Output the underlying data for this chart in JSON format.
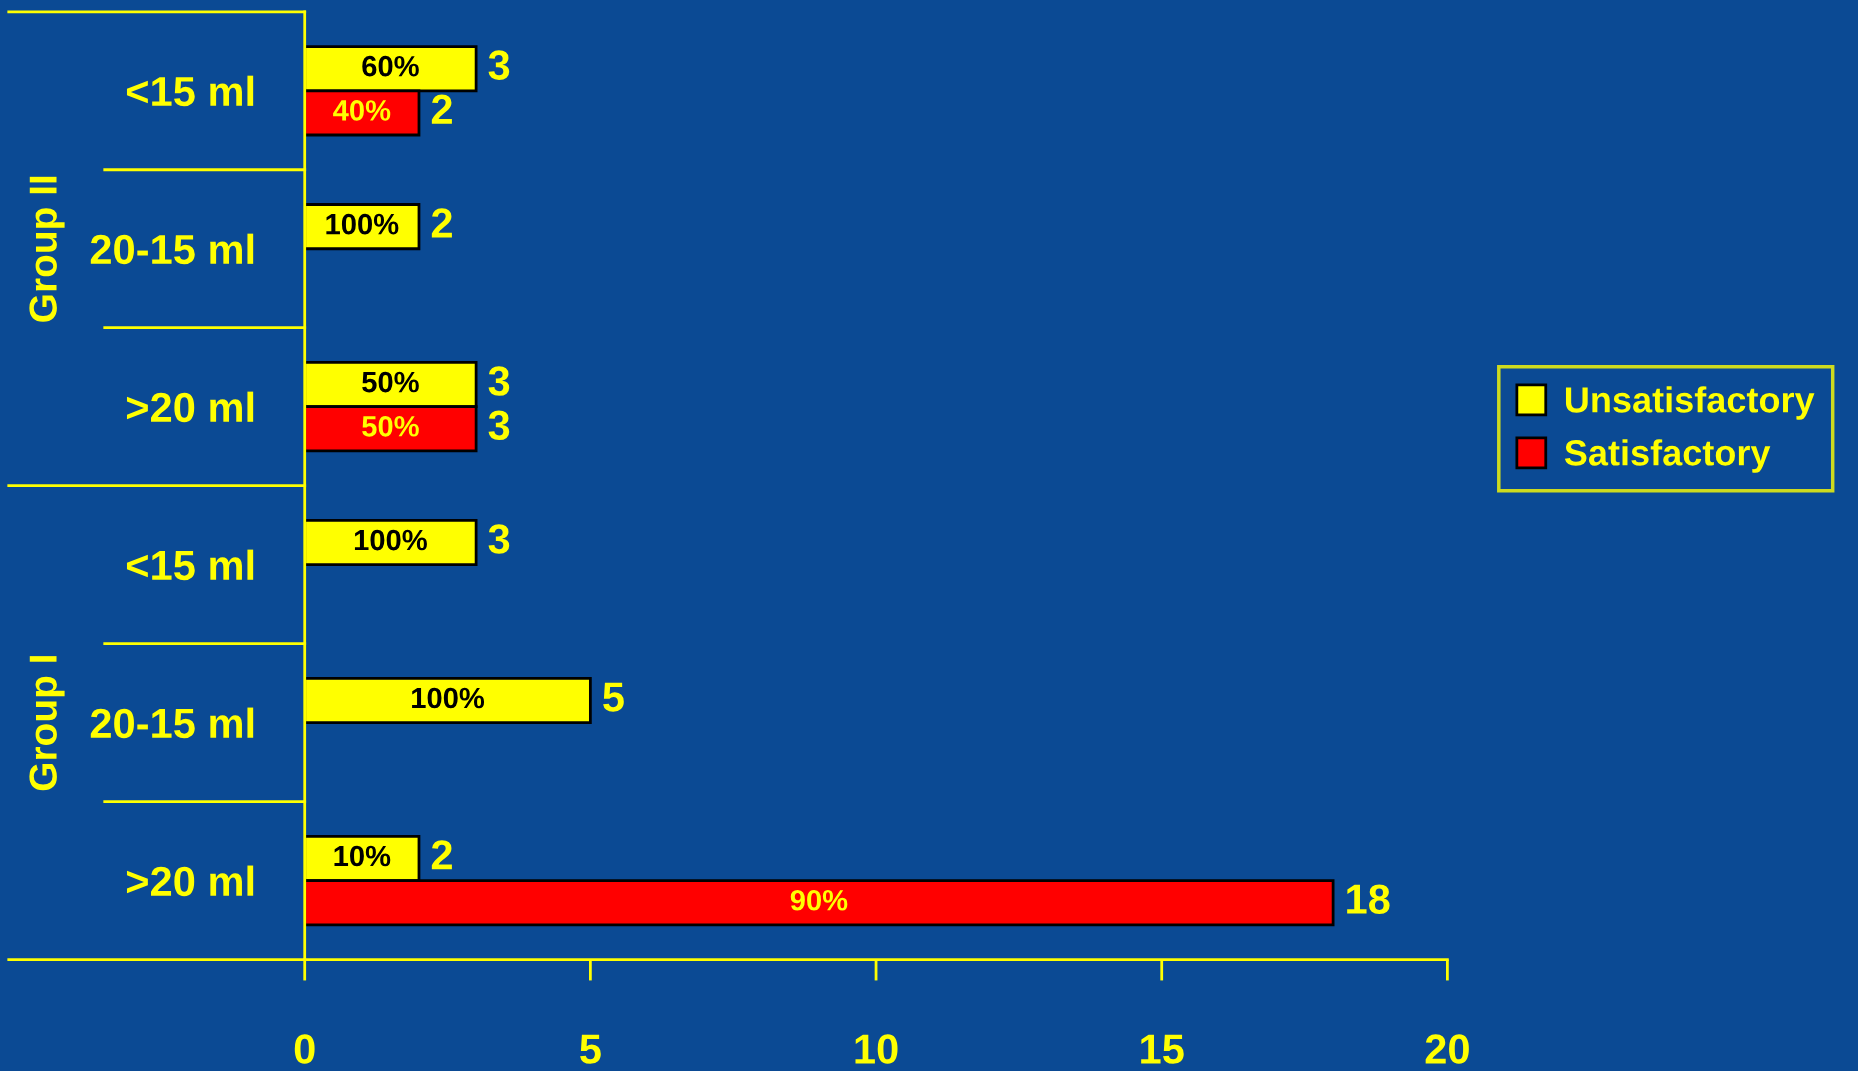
{
  "chart_data": {
    "type": "bar",
    "orientation": "horizontal",
    "categories": [
      "<15 ml",
      "20-15 ml",
      ">20 ml",
      "<15 ml",
      "20-15 ml",
      ">20 ml"
    ],
    "series": [
      {
        "name": "Unsatisfactory",
        "color": "#ffff00",
        "values": [
          3,
          2,
          3,
          3,
          5,
          2
        ]
      },
      {
        "name": "Satisfactory",
        "color": "#ff0000",
        "values": [
          2,
          null,
          3,
          null,
          null,
          18
        ]
      }
    ],
    "xlim": [
      0,
      20
    ],
    "xticks": [
      0,
      5,
      10,
      15,
      20
    ],
    "data_labels": true,
    "legend": "right",
    "annotations": [
      "Group II",
      "Group I",
      "60%",
      "100%",
      "50%",
      "100%",
      "100%",
      "10%",
      "40%",
      "50%",
      "90%"
    ]
  }
}
